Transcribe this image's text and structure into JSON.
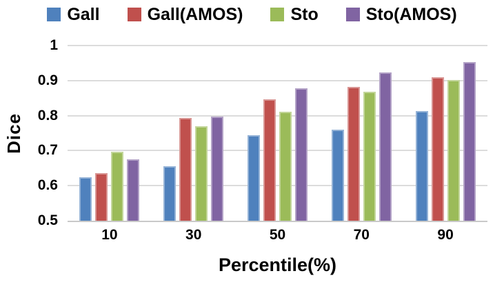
{
  "chart_data": {
    "type": "bar",
    "xlabel": "Percentile(%)",
    "ylabel": "Dice",
    "categories": [
      "10",
      "30",
      "50",
      "70",
      "90"
    ],
    "series": [
      {
        "name": "Gall",
        "color": "#4F81BD",
        "border": "#95B3D7",
        "values": [
          0.625,
          0.655,
          0.744,
          0.76,
          0.813
        ]
      },
      {
        "name": "Gall(AMOS)",
        "color": "#C0504D",
        "border": "#D99694",
        "values": [
          0.635,
          0.793,
          0.847,
          0.882,
          0.91
        ]
      },
      {
        "name": "Sto",
        "color": "#9BBB59",
        "border": "#C3D69B",
        "values": [
          0.696,
          0.77,
          0.812,
          0.868,
          0.901
        ]
      },
      {
        "name": "Sto(AMOS)",
        "color": "#8064A2",
        "border": "#B3A2C7",
        "values": [
          0.675,
          0.798,
          0.877,
          0.923,
          0.952
        ]
      }
    ],
    "ylim": [
      0.5,
      1.0
    ],
    "ytick_labels": [
      "0.5",
      "0.6",
      "0.7",
      "0.8",
      "0.9",
      "1"
    ],
    "ytick_values": [
      0.5,
      0.6,
      0.7,
      0.8,
      0.9,
      1.0
    ],
    "grid": true,
    "legend_position": "top",
    "gridline_color": "#DCDCDC",
    "axis_line_color": "#C9C9C9"
  }
}
